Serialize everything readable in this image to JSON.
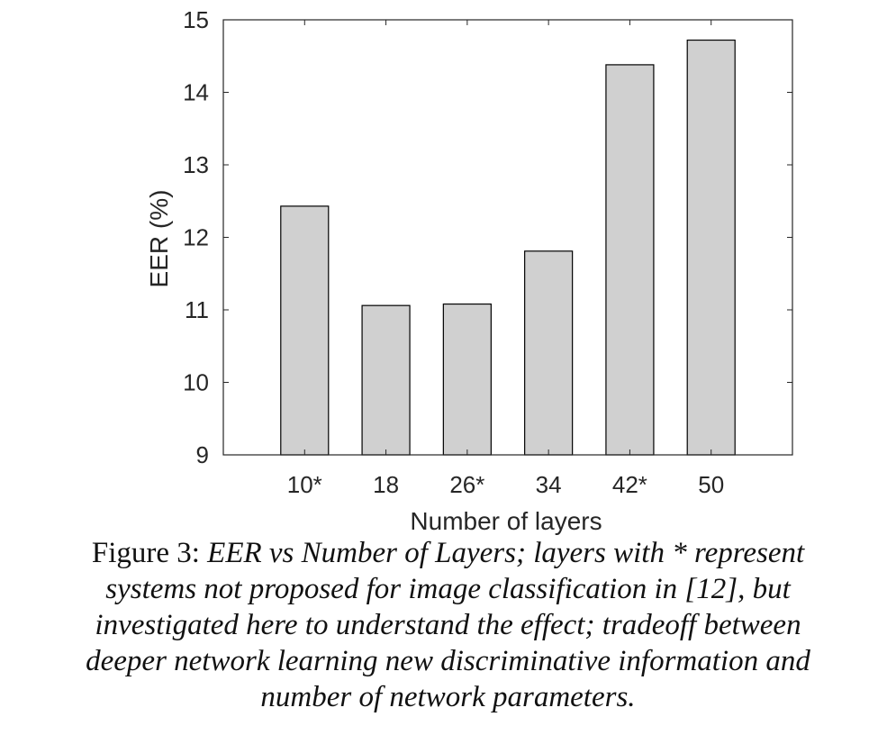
{
  "chart_data": {
    "type": "bar",
    "categories": [
      "10*",
      "18",
      "26*",
      "34",
      "42*",
      "50"
    ],
    "values": [
      12.43,
      11.06,
      11.08,
      11.81,
      14.38,
      14.72
    ],
    "xlabel": "Number of layers",
    "ylabel": "EER (%)",
    "ylim": [
      9,
      15
    ],
    "yticks": [
      "9",
      "10",
      "11",
      "12",
      "13",
      "14",
      "15"
    ],
    "grid": false,
    "bar_color": "#d0d0d0",
    "bar_edge_color": "#000000"
  },
  "caption": {
    "prefix": "Figure 3:",
    "lines": [
      "EER vs Number of Layers; layers with * represent",
      "systems not proposed for image classification in [12], but",
      "investigated here to understand the effect; tradeoff between",
      "deeper network learning new discriminative information and",
      "number of network parameters."
    ]
  }
}
